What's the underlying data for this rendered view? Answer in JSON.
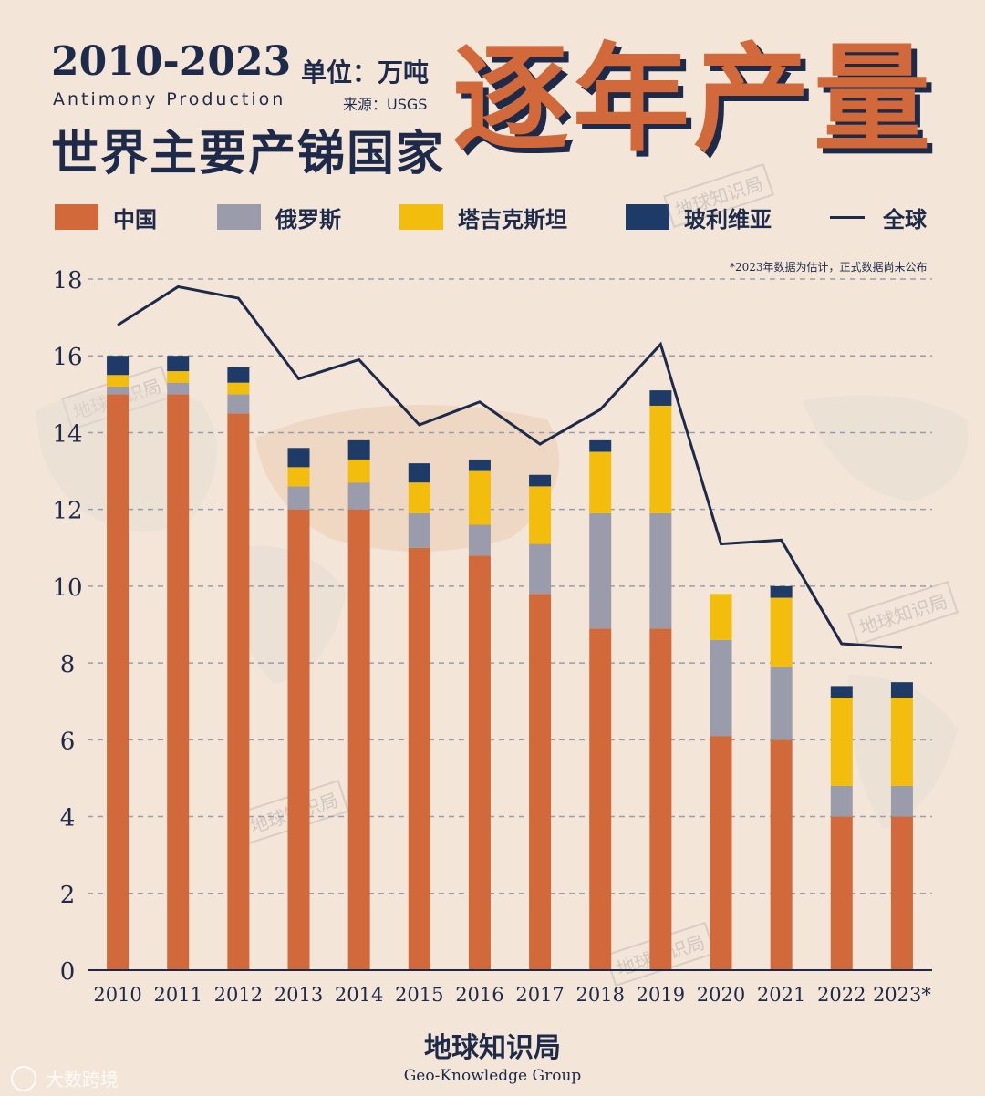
{
  "header": {
    "years": "2010-2023",
    "unit": "单位：万吨",
    "subtitle_en": "Antimony Production",
    "source": "来源：USGS",
    "title_cn": "世界主要产锑国家",
    "big_title": "逐年产量"
  },
  "legend": [
    {
      "label": "中国",
      "color": "#d2693a",
      "kind": "bar"
    },
    {
      "label": "俄罗斯",
      "color": "#9a9cab",
      "kind": "bar"
    },
    {
      "label": "塔吉克斯坦",
      "color": "#f2bd0d",
      "kind": "bar"
    },
    {
      "label": "玻利维亚",
      "color": "#1e3a66",
      "kind": "bar"
    },
    {
      "label": "全球",
      "color": "#1e2a4a",
      "kind": "line"
    }
  ],
  "note": "*2023年数据为估计，正式数据尚未公布",
  "watermark": "地球知识局",
  "brand": {
    "cn": "地球知识局",
    "en": "Geo-Knowledge Group"
  },
  "footer_mark": "大数跨境",
  "chart_data": {
    "type": "bar",
    "stacked": true,
    "categories": [
      "2010",
      "2011",
      "2012",
      "2013",
      "2014",
      "2015",
      "2016",
      "2017",
      "2018",
      "2019",
      "2020",
      "2021",
      "2022",
      "2023*"
    ],
    "ylim": [
      0,
      18
    ],
    "yticks": [
      0,
      2,
      4,
      6,
      8,
      10,
      12,
      14,
      16,
      18
    ],
    "grid": true,
    "series": [
      {
        "name": "中国",
        "color": "#d2693a",
        "values": [
          15.0,
          15.0,
          14.5,
          12.0,
          12.0,
          11.0,
          10.8,
          9.8,
          8.9,
          8.9,
          6.1,
          6.0,
          4.0,
          4.0
        ]
      },
      {
        "name": "俄罗斯",
        "color": "#9a9cab",
        "values": [
          0.2,
          0.3,
          0.5,
          0.6,
          0.7,
          0.9,
          0.8,
          1.3,
          3.0,
          3.0,
          2.5,
          1.9,
          0.8,
          0.8
        ]
      },
      {
        "name": "塔吉克斯坦",
        "color": "#f2bd0d",
        "values": [
          0.3,
          0.3,
          0.3,
          0.5,
          0.6,
          0.8,
          1.4,
          1.5,
          1.6,
          2.8,
          1.2,
          1.8,
          2.3,
          2.3
        ]
      },
      {
        "name": "玻利维亚",
        "color": "#1e3a66",
        "values": [
          0.5,
          0.4,
          0.4,
          0.5,
          0.5,
          0.5,
          0.3,
          0.3,
          0.3,
          0.4,
          0.0,
          0.3,
          0.3,
          0.4
        ]
      }
    ],
    "line": {
      "name": "全球",
      "color": "#1e2a4a",
      "values": [
        16.8,
        17.8,
        17.5,
        15.4,
        15.9,
        14.2,
        14.8,
        13.7,
        14.6,
        16.3,
        11.1,
        11.2,
        8.5,
        8.4
      ]
    }
  }
}
